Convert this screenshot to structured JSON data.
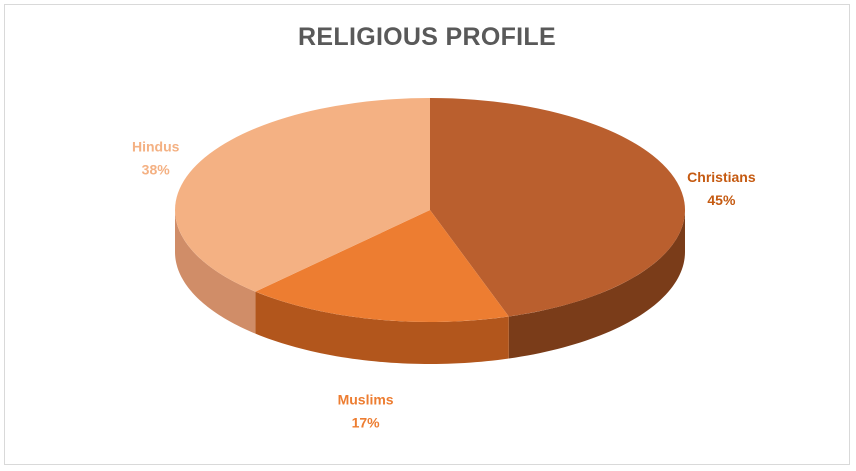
{
  "chart_data": {
    "type": "pie",
    "title": "RELIGIOUS PROFILE",
    "slices": [
      {
        "name": "Christians",
        "value": 45,
        "label": "45%",
        "color": "#BA5F2E",
        "side_color": "#7A3C19",
        "label_color": "#C55A11"
      },
      {
        "name": "Muslims",
        "value": 17,
        "label": "17%",
        "color": "#ED7D31",
        "side_color": "#B2561C",
        "label_color": "#ED7D31"
      },
      {
        "name": "Hindus",
        "value": 38,
        "label": "38%",
        "color": "#F4B183",
        "side_color": "#D08D68",
        "label_color": "#F4B183"
      }
    ],
    "style": "3d-pie",
    "legend": "none",
    "data_labels": "category-name-and-percent"
  }
}
